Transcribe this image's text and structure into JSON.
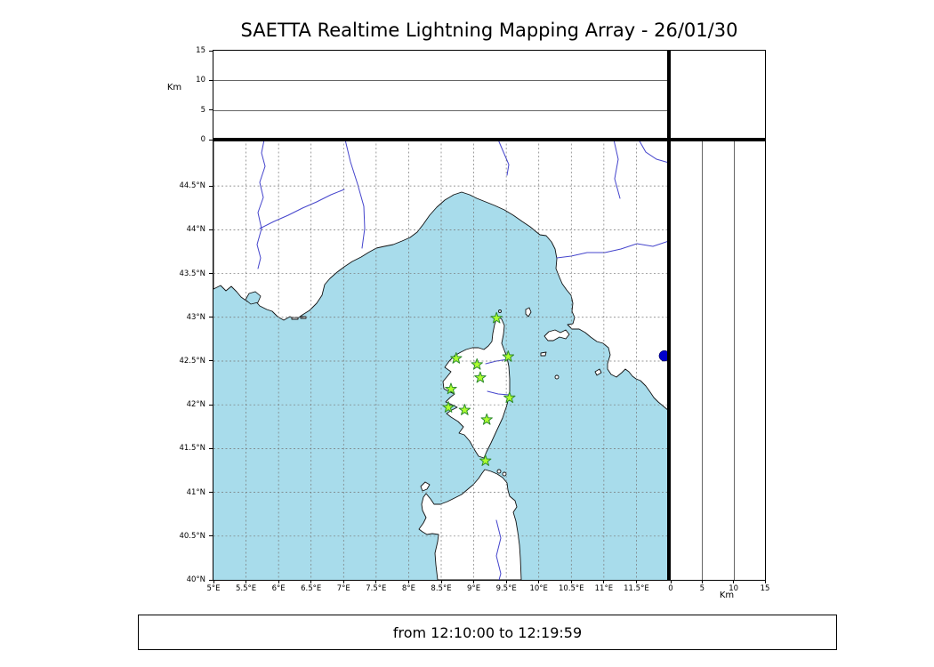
{
  "title": "SAETTA Realtime Lightning Mapping Array - 26/01/30",
  "footer": {
    "time_range": "from 12:10:00 to 12:19:59"
  },
  "panels": {
    "top": {
      "unit_label": "Km",
      "ticks": [
        "15",
        "10",
        "5",
        "0"
      ]
    },
    "right": {
      "unit_label": "Km",
      "ticks": [
        "0",
        "5",
        "10",
        "15"
      ]
    }
  },
  "map": {
    "lon_ticks": [
      "5°E",
      "5.5°E",
      "6°E",
      "6.5°E",
      "7°E",
      "7.5°E",
      "8°E",
      "8.5°E",
      "9°E",
      "9.5°E",
      "10°E",
      "10.5°E",
      "11°E",
      "11.5°E"
    ],
    "lat_ticks": [
      "44.5°N",
      "44°N",
      "43.5°N",
      "43°N",
      "42.5°N",
      "42°N",
      "41.5°N",
      "41°N",
      "40.5°N",
      "40°N"
    ]
  },
  "chart_data": {
    "type": "scatter",
    "title": "SAETTA Realtime Lightning Mapping Array - 26/01/30",
    "time_window": "from 12:10:00 to 12:19:59",
    "map_extent": {
      "lon": [
        5,
        12
      ],
      "lat": [
        40,
        45.03
      ]
    },
    "altitude_km_range": [
      0,
      15
    ],
    "altitude_gridlines_km": [
      5,
      10
    ],
    "graticule_step_deg": 0.5,
    "stations_lonlat": [
      [
        9.35,
        42.99
      ],
      [
        8.73,
        42.53
      ],
      [
        9.05,
        42.46
      ],
      [
        9.53,
        42.55
      ],
      [
        9.1,
        42.31
      ],
      [
        8.65,
        42.18
      ],
      [
        9.55,
        42.08
      ],
      [
        8.61,
        41.97
      ],
      [
        8.86,
        41.94
      ],
      [
        9.2,
        41.83
      ],
      [
        9.18,
        41.36
      ]
    ],
    "event_point": {
      "lon": 11.93,
      "lat": 42.56,
      "color": "#0000cc"
    },
    "colors": {
      "sea": "#a8dceb",
      "land": "#ffffff",
      "coast": "#111111",
      "river": "#4444cc",
      "graticule": "#777777",
      "panel_grid": "#666666",
      "station_fill": "#adff2f",
      "station_stroke": "#2e8b2e"
    }
  }
}
